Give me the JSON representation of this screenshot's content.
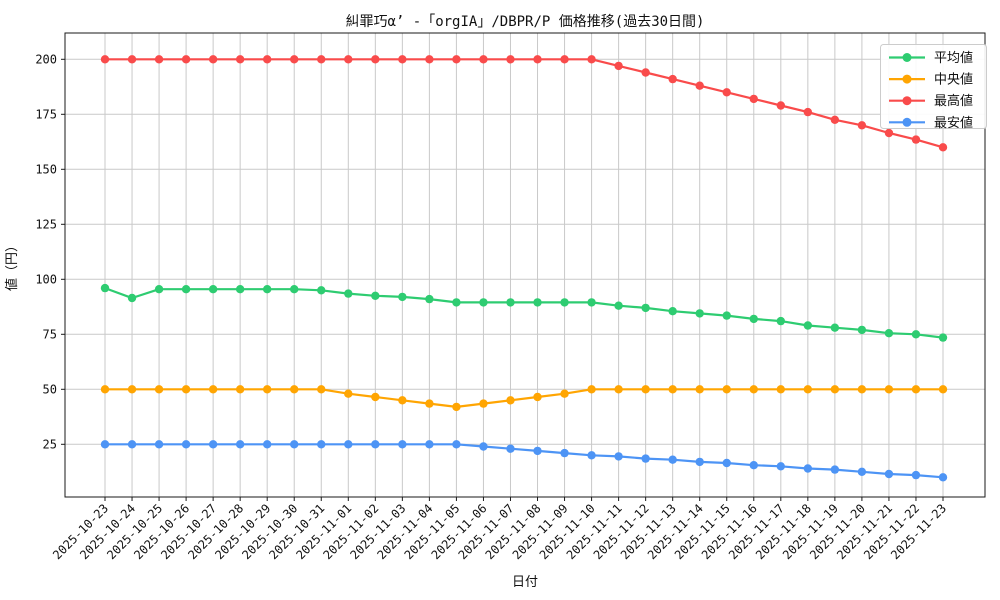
{
  "figure": {
    "background": "#ffffff",
    "grid_color": "#c9c9c9",
    "spine_color": "#1a1a1a",
    "legend": {
      "border_color": "#cccccc",
      "background": "#ffffff",
      "items": [
        {
          "key": "average",
          "label": "平均値",
          "color": "#2ecc71"
        },
        {
          "key": "median",
          "label": "中央値",
          "color": "#ffa502"
        },
        {
          "key": "highest",
          "label": "最高値",
          "color": "#f94b4b"
        },
        {
          "key": "lowest",
          "label": "最安値",
          "color": "#4d94f5"
        }
      ]
    }
  },
  "chart_data": {
    "type": "line",
    "title": "糾罪巧α’ -「orgIA」/DBPR/P 価格推移(過去30日間)",
    "xlabel": "日付",
    "ylabel": "値（円）",
    "grid": true,
    "legend_position": "top-right",
    "ylim": [
      1,
      212
    ],
    "yticks": [
      25,
      50,
      75,
      100,
      125,
      150,
      175,
      200
    ],
    "categories": [
      "2025-10-23",
      "2025-10-24",
      "2025-10-25",
      "2025-10-26",
      "2025-10-27",
      "2025-10-28",
      "2025-10-29",
      "2025-10-30",
      "2025-10-31",
      "2025-11-01",
      "2025-11-02",
      "2025-11-03",
      "2025-11-04",
      "2025-11-05",
      "2025-11-06",
      "2025-11-07",
      "2025-11-08",
      "2025-11-09",
      "2025-11-10",
      "2025-11-11",
      "2025-11-12",
      "2025-11-13",
      "2025-11-14",
      "2025-11-15",
      "2025-11-16",
      "2025-11-17",
      "2025-11-18",
      "2025-11-19",
      "2025-11-20",
      "2025-11-21",
      "2025-11-22",
      "2025-11-23"
    ],
    "series": [
      {
        "key": "average",
        "name": "平均値",
        "color": "#2ecc71",
        "values": [
          96,
          91.5,
          95.5,
          95.5,
          95.5,
          95.5,
          95.5,
          95.5,
          95,
          93.5,
          92.5,
          92,
          91,
          89.5,
          89.5,
          89.5,
          89.5,
          89.5,
          89.5,
          88,
          87,
          85.5,
          84.5,
          83.5,
          82,
          81,
          79,
          78,
          77,
          75.5,
          75,
          73.5
        ]
      },
      {
        "key": "median",
        "name": "中央値",
        "color": "#ffa502",
        "values": [
          50,
          50,
          50,
          50,
          50,
          50,
          50,
          50,
          50,
          48,
          46.5,
          45,
          43.5,
          42,
          43.5,
          45,
          46.5,
          48,
          50,
          50,
          50,
          50,
          50,
          50,
          50,
          50,
          50,
          50,
          50,
          50,
          50,
          50
        ]
      },
      {
        "key": "highest",
        "name": "最高値",
        "color": "#f94b4b",
        "values": [
          200,
          200,
          200,
          200,
          200,
          200,
          200,
          200,
          200,
          200,
          200,
          200,
          200,
          200,
          200,
          200,
          200,
          200,
          200,
          197,
          194,
          191,
          188,
          185,
          182,
          179,
          176,
          172.5,
          170,
          166.5,
          163.5,
          160
        ]
      },
      {
        "key": "lowest",
        "name": "最安値",
        "color": "#4d94f5",
        "values": [
          25,
          25,
          25,
          25,
          25,
          25,
          25,
          25,
          25,
          25,
          25,
          25,
          25,
          25,
          24,
          23,
          22,
          21,
          20,
          19.5,
          18.5,
          18,
          17,
          16.5,
          15.5,
          15,
          14,
          13.5,
          12.5,
          11.5,
          11,
          10
        ]
      }
    ]
  }
}
